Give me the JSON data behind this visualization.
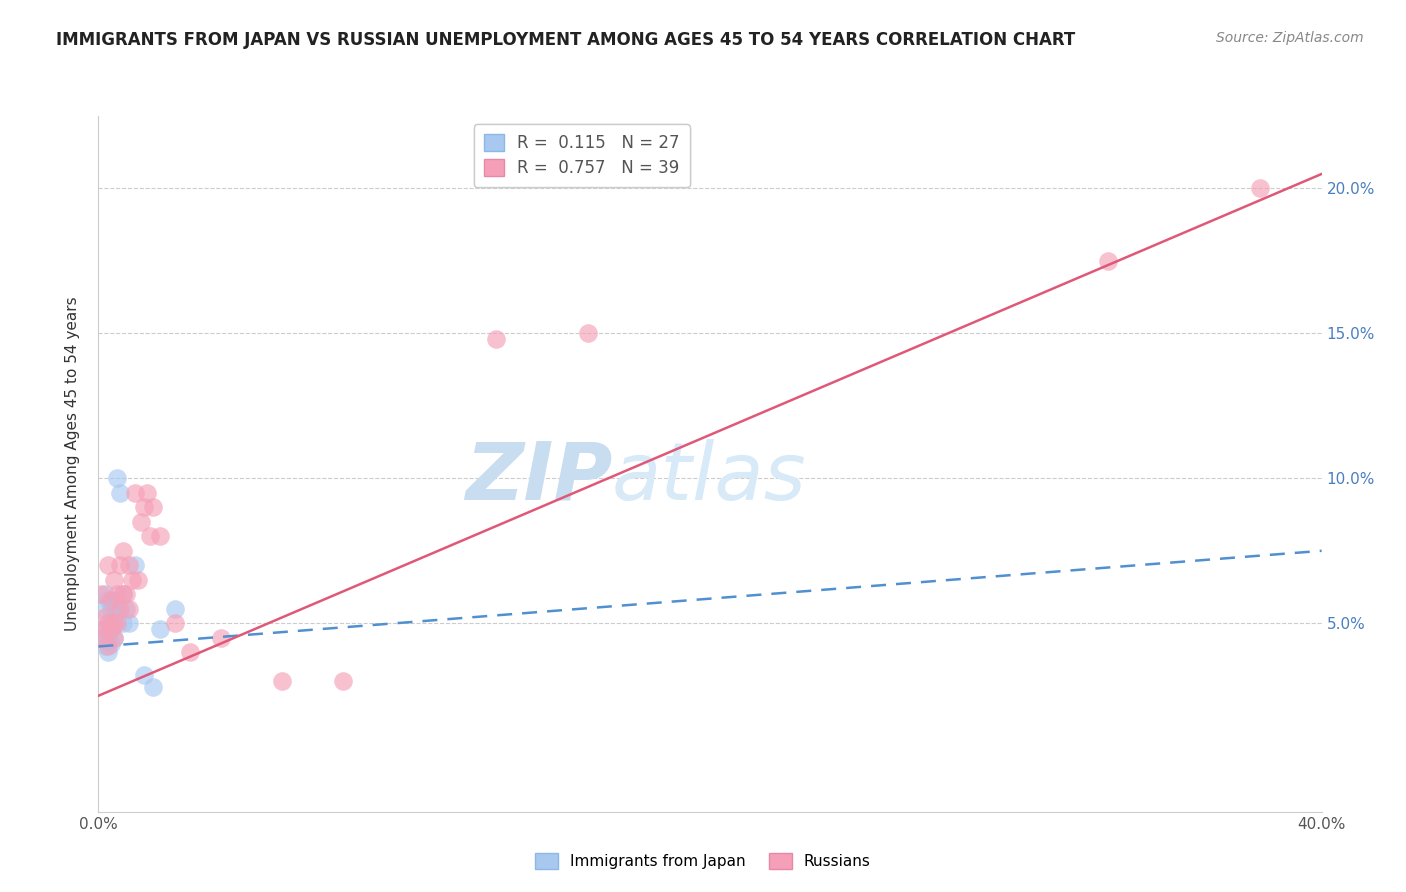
{
  "title": "IMMIGRANTS FROM JAPAN VS RUSSIAN UNEMPLOYMENT AMONG AGES 45 TO 54 YEARS CORRELATION CHART",
  "source": "Source: ZipAtlas.com",
  "ylabel": "Unemployment Among Ages 45 to 54 years",
  "ytick_labels": [
    "5.0%",
    "10.0%",
    "15.0%",
    "20.0%"
  ],
  "ytick_values": [
    0.05,
    0.1,
    0.15,
    0.2
  ],
  "xlim": [
    0.0,
    0.4
  ],
  "ylim": [
    -0.015,
    0.225
  ],
  "legend_japan_R": "0.115",
  "legend_japan_N": "27",
  "legend_russian_R": "0.757",
  "legend_russian_N": "39",
  "japan_color": "#a8c8f0",
  "russian_color": "#f5a0b8",
  "japan_line_color": "#5090d0",
  "russian_line_color": "#e05878",
  "watermark_zip": "ZIP",
  "watermark_atlas": "atlas",
  "watermark_color": "#ddeeff",
  "japan_x": [
    0.001,
    0.001,
    0.002,
    0.002,
    0.002,
    0.003,
    0.003,
    0.003,
    0.003,
    0.004,
    0.004,
    0.004,
    0.005,
    0.005,
    0.005,
    0.006,
    0.006,
    0.007,
    0.008,
    0.008,
    0.009,
    0.01,
    0.012,
    0.015,
    0.018,
    0.02,
    0.025
  ],
  "japan_y": [
    0.045,
    0.055,
    0.042,
    0.048,
    0.06,
    0.04,
    0.044,
    0.05,
    0.058,
    0.043,
    0.048,
    0.055,
    0.045,
    0.052,
    0.058,
    0.1,
    0.055,
    0.095,
    0.05,
    0.06,
    0.055,
    0.05,
    0.07,
    0.032,
    0.028,
    0.048,
    0.055
  ],
  "russian_x": [
    0.001,
    0.001,
    0.002,
    0.002,
    0.003,
    0.003,
    0.003,
    0.004,
    0.004,
    0.005,
    0.005,
    0.005,
    0.006,
    0.006,
    0.007,
    0.007,
    0.008,
    0.008,
    0.009,
    0.01,
    0.01,
    0.011,
    0.012,
    0.013,
    0.014,
    0.015,
    0.016,
    0.017,
    0.018,
    0.02,
    0.025,
    0.03,
    0.04,
    0.06,
    0.08,
    0.13,
    0.16,
    0.33,
    0.38
  ],
  "russian_y": [
    0.045,
    0.06,
    0.048,
    0.052,
    0.042,
    0.05,
    0.07,
    0.048,
    0.058,
    0.045,
    0.05,
    0.065,
    0.05,
    0.06,
    0.055,
    0.07,
    0.06,
    0.075,
    0.06,
    0.055,
    0.07,
    0.065,
    0.095,
    0.065,
    0.085,
    0.09,
    0.095,
    0.08,
    0.09,
    0.08,
    0.05,
    0.04,
    0.045,
    0.03,
    0.03,
    0.148,
    0.15,
    0.175,
    0.2
  ],
  "japan_line_x": [
    0.0,
    0.4
  ],
  "japan_line_y": [
    0.042,
    0.075
  ],
  "russian_line_x": [
    0.0,
    0.4
  ],
  "russian_line_y": [
    0.025,
    0.205
  ]
}
